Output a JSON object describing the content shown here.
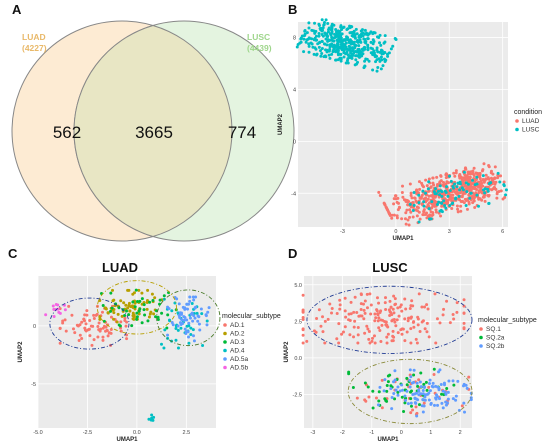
{
  "panels": {
    "A": "A",
    "B": "B",
    "C": "C",
    "D": "D"
  },
  "colors": {
    "luad_venn": "#e9b96a",
    "lusc_venn": "#9fd68c",
    "luad_fill": "#fdebd3",
    "lusc_fill": "#e4f4e0",
    "overlap_fill": "#e8e6c4",
    "luad_point": "#f8766d",
    "lusc_point": "#00bfc4",
    "ad1": "#f8766d",
    "ad2": "#b79f00",
    "ad3": "#00ba38",
    "ad4": "#00bfc4",
    "ad5a": "#619cff",
    "ad5b": "#f564e3",
    "sq1": "#f8766d",
    "sq2a": "#00ba38",
    "sq2b": "#619cff"
  },
  "chart_data": [
    {
      "panel": "A",
      "type": "venn",
      "sets": [
        {
          "name": "LUAD",
          "total": "(4227)",
          "unique": 562
        },
        {
          "name": "LUSC",
          "total": "(4439)",
          "unique": 774
        }
      ],
      "overlap": 3665
    },
    {
      "panel": "B",
      "type": "scatter",
      "xlabel": "UMAP1",
      "ylabel": "UMAP2",
      "xlim": [
        -5.5,
        6.3
      ],
      "ylim": [
        -6.6,
        9.2
      ],
      "xticks": [
        -3,
        0,
        3,
        6
      ],
      "yticks": [
        -4,
        0,
        4,
        8
      ],
      "legend_title": "condition",
      "legend_position": "right",
      "series": [
        {
          "name": "LUAD",
          "color_key": "luad_point",
          "clusters": [
            {
              "cx": 2.6,
              "cy": -4.2,
              "rx": 3.1,
              "ry": 1.4,
              "tilt": 0.35,
              "n": 420
            },
            {
              "cx": 4.4,
              "cy": -3.2,
              "rx": 1.5,
              "ry": 1.2,
              "tilt": 0.4,
              "n": 160
            }
          ]
        },
        {
          "name": "LUSC",
          "color_key": "lusc_point",
          "clusters": [
            {
              "cx": -2.8,
              "cy": 7.5,
              "rx": 2.4,
              "ry": 1.3,
              "tilt": -0.35,
              "n": 420
            },
            {
              "cx": 3.4,
              "cy": -4.0,
              "rx": 2.6,
              "ry": 1.3,
              "tilt": 0.35,
              "n": 90
            }
          ]
        }
      ]
    },
    {
      "panel": "C",
      "type": "scatter",
      "title": "LUAD",
      "xlabel": "UMAP1",
      "ylabel": "UMAP2",
      "xlim": [
        -5.0,
        4.0
      ],
      "ylim": [
        -8.8,
        4.3
      ],
      "xticks": [
        -5.0,
        -2.5,
        0.0,
        2.5
      ],
      "yticks": [
        -5,
        0
      ],
      "legend_title": "molecular_subtype",
      "legend_position": "right",
      "series": [
        {
          "name": "AD.1",
          "color_key": "ad1",
          "clusters": [
            {
              "cx": -2.2,
              "cy": 0.0,
              "rx": 1.6,
              "ry": 1.6,
              "tilt": 0,
              "n": 80
            }
          ]
        },
        {
          "name": "AD.2",
          "color_key": "ad2",
          "clusters": [
            {
              "cx": -0.3,
              "cy": 1.7,
              "rx": 1.5,
              "ry": 1.3,
              "tilt": 0,
              "n": 75
            }
          ]
        },
        {
          "name": "AD.3",
          "color_key": "ad3",
          "clusters": [
            {
              "cx": 0.1,
              "cy": 1.4,
              "rx": 1.8,
              "ry": 1.6,
              "tilt": 0,
              "n": 45
            }
          ]
        },
        {
          "name": "AD.4",
          "color_key": "ad4",
          "clusters": [
            {
              "cx": 2.4,
              "cy": 0.2,
              "rx": 1.1,
              "ry": 2.0,
              "tilt": 0,
              "n": 40
            },
            {
              "cx": 0.8,
              "cy": -8.1,
              "rx": 0.3,
              "ry": 0.4,
              "tilt": 0,
              "n": 6
            }
          ]
        },
        {
          "name": "AD.5a",
          "color_key": "ad5a",
          "clusters": [
            {
              "cx": 2.6,
              "cy": 0.6,
              "rx": 1.0,
              "ry": 1.8,
              "tilt": 0,
              "n": 60
            }
          ]
        },
        {
          "name": "AD.5b",
          "color_key": "ad5b",
          "clusters": [
            {
              "cx": -4.2,
              "cy": 1.3,
              "rx": 0.6,
              "ry": 0.6,
              "tilt": 0,
              "n": 12
            }
          ]
        }
      ]
    },
    {
      "panel": "D",
      "type": "scatter",
      "title": "LUSC",
      "xlabel": "UMAP1",
      "ylabel": "UMAP2",
      "xlim": [
        -3.3,
        2.4
      ],
      "ylim": [
        -4.8,
        5.6
      ],
      "xticks": [
        -3,
        -2,
        -1,
        0,
        1,
        2
      ],
      "yticks": [
        -2.5,
        0.0,
        2.5,
        5.0
      ],
      "legend_title": "molecular_subtype",
      "legend_position": "right",
      "series": [
        {
          "name": "SQ.1",
          "color_key": "sq1",
          "clusters": [
            {
              "cx": -0.6,
              "cy": 2.7,
              "rx": 2.6,
              "ry": 1.6,
              "tilt": 0,
              "n": 200
            },
            {
              "cx": 0.4,
              "cy": -2.4,
              "rx": 1.8,
              "ry": 1.4,
              "tilt": 0,
              "n": 40
            }
          ]
        },
        {
          "name": "SQ.2a",
          "color_key": "sq2a",
          "clusters": [
            {
              "cx": 0.0,
              "cy": -2.2,
              "rx": 1.7,
              "ry": 1.4,
              "tilt": 0,
              "n": 55
            }
          ]
        },
        {
          "name": "SQ.2b",
          "color_key": "sq2b",
          "clusters": [
            {
              "cx": 0.8,
              "cy": -2.4,
              "rx": 1.5,
              "ry": 1.5,
              "tilt": 0,
              "n": 110
            }
          ]
        }
      ]
    }
  ]
}
